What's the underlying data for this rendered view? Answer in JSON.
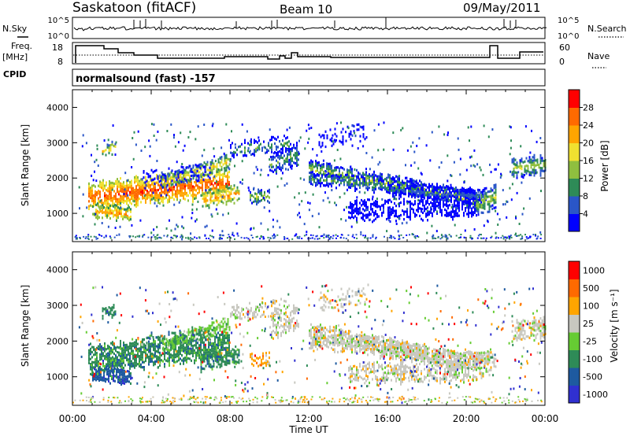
{
  "header": {
    "station": "Saskatoon (fitACF)",
    "beam": "Beam 10",
    "date": "09/May/2011"
  },
  "side_labels": {
    "nsky": "N.Sky",
    "freq": "Freq.",
    "freq_unit": "[MHz]",
    "cpid": "CPID",
    "nsearch": "N.Search",
    "nave": "Nave",
    "cpid_value": "normalsound (fast) -157"
  },
  "panels": {
    "noise": {
      "left_ticks": [
        "10^5",
        "10^0"
      ],
      "right_ticks": [
        "10^5",
        "10^0"
      ]
    },
    "freq": {
      "left_ticks": [
        "18",
        "8"
      ],
      "right_ticks": [
        "60",
        "0"
      ]
    }
  },
  "colors": {
    "power_scale": [
      "#0000ff",
      "#2a56c8",
      "#2e8b57",
      "#8fbf3f",
      "#f0e130",
      "#ffa500",
      "#ff6a00",
      "#ff0000"
    ],
    "velocity_scale": [
      "#3030d0",
      "#1e5aa0",
      "#2e8b57",
      "#66cc33",
      "#c8c8c0",
      "#ffa500",
      "#ff6a00",
      "#ff0000"
    ]
  },
  "chart_data": [
    {
      "type": "heatmap",
      "panel": "power",
      "ylabel": "Slant Range [km]",
      "yticks": [
        "4000",
        "3000",
        "2000",
        "1000"
      ],
      "ylim": [
        200,
        4500
      ],
      "xticks": [
        "00:00",
        "04:00",
        "08:00",
        "12:00",
        "16:00",
        "20:00",
        "00:00"
      ],
      "xlim": [
        0,
        24
      ],
      "colorbar_label": "Power [dB]",
      "colorbar_ticks": [
        "28",
        "24",
        "20",
        "16",
        "12",
        "8",
        "4"
      ],
      "colorbar_range": [
        0,
        32
      ]
    },
    {
      "type": "heatmap",
      "panel": "velocity",
      "ylabel": "Slant Range [km]",
      "yticks": [
        "4000",
        "3000",
        "2000",
        "1000"
      ],
      "ylim": [
        200,
        4500
      ],
      "xticks": [
        "00:00",
        "04:00",
        "08:00",
        "12:00",
        "16:00",
        "20:00",
        "00:00"
      ],
      "xlim": [
        0,
        24
      ],
      "xlabel": "Time UT",
      "colorbar_label": "Velocity [m s⁻¹]",
      "colorbar_ticks": [
        "1000",
        "500",
        "100",
        "25",
        "-25",
        "-100",
        "-500",
        "-1000"
      ]
    }
  ]
}
